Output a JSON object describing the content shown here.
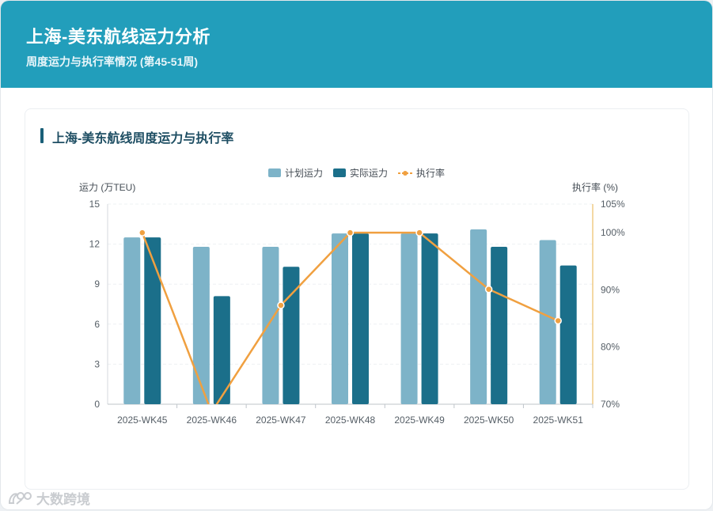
{
  "header": {
    "title": "上海-美东航线运力分析",
    "subtitle": "周度运力与执行率情况 (第45-51周)"
  },
  "card": {
    "title": "上海-美东航线周度运力与执行率"
  },
  "watermark": {
    "text": "大数跨境"
  },
  "colors": {
    "header_bg": "#229ebb",
    "planned": "#7db3c8",
    "actual": "#1b6f8a",
    "rate": "#f0a040"
  },
  "chart_data": {
    "type": "bar",
    "categories": [
      "2025-WK45",
      "2025-WK46",
      "2025-WK47",
      "2025-WK48",
      "2025-WK49",
      "2025-WK50",
      "2025-WK51"
    ],
    "series": [
      {
        "name": "计划运力",
        "type": "bar",
        "axis": "left",
        "values": [
          12.5,
          11.8,
          11.8,
          12.8,
          12.8,
          13.1,
          12.3
        ]
      },
      {
        "name": "实际运力",
        "type": "bar",
        "axis": "left",
        "values": [
          12.5,
          8.1,
          10.3,
          12.8,
          12.8,
          11.8,
          10.4
        ]
      },
      {
        "name": "执行率",
        "type": "line",
        "axis": "right",
        "values": [
          100,
          68.6,
          87.3,
          100,
          100,
          90.1,
          84.6
        ]
      }
    ],
    "y_left": {
      "label": "运力 (万TEU)",
      "ylim": [
        0,
        15
      ],
      "ticks": [
        "0",
        "3",
        "6",
        "9",
        "12",
        "15"
      ]
    },
    "y_right": {
      "label": "执行率 (%)",
      "ylim": [
        70,
        105
      ],
      "ticks": [
        "70%",
        "80%",
        "90%",
        "100%",
        "105%"
      ]
    },
    "legend": {
      "position": "top-center"
    },
    "grid": true
  }
}
